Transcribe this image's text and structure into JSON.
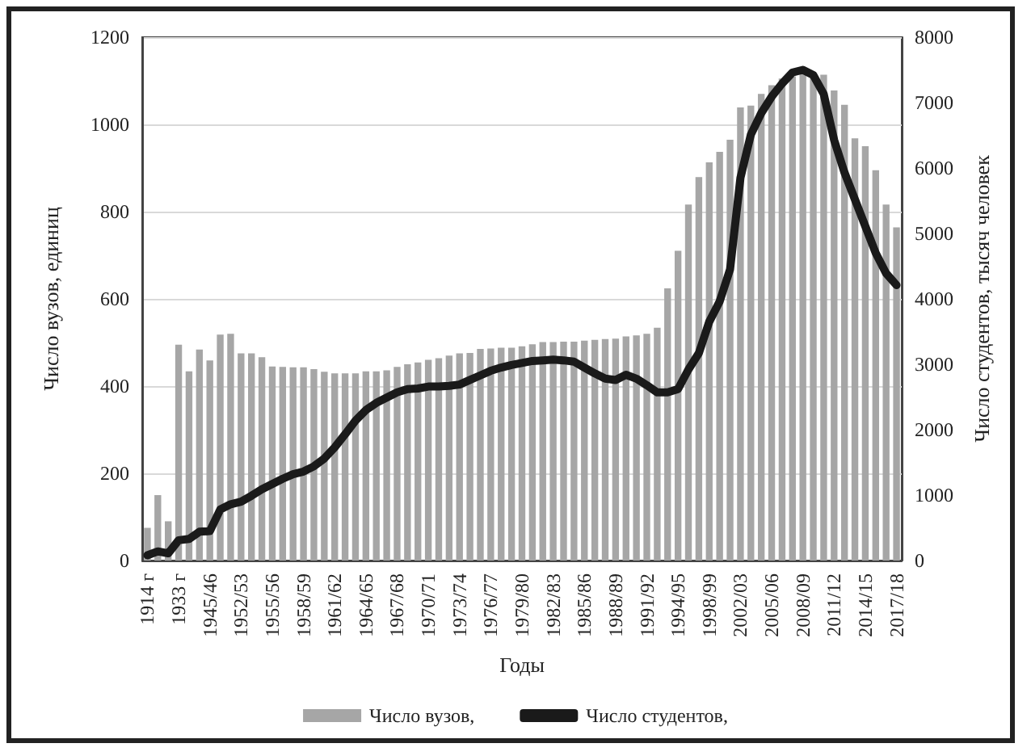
{
  "chart_data": {
    "type": "bar",
    "xlabel": "Годы",
    "ylabel": "Число вузов, единиц",
    "y2label": "Число студентов, тысяч человек",
    "categories": [
      "1914 г",
      null,
      null,
      "1933 г",
      null,
      null,
      "1945/46",
      null,
      null,
      "1952/53",
      null,
      null,
      "1955/56",
      null,
      null,
      "1958/59",
      null,
      null,
      "1961/62",
      null,
      null,
      "1964/65",
      null,
      null,
      "1967/68",
      null,
      null,
      "1970/71",
      null,
      null,
      "1973/74",
      null,
      null,
      "1976/77",
      null,
      null,
      "1979/80",
      null,
      null,
      "1982/83",
      null,
      null,
      "1985/86",
      null,
      null,
      "1988/89",
      null,
      null,
      "1991/92",
      null,
      null,
      "1994/95",
      null,
      null,
      "1998/99",
      null,
      null,
      "2002/03",
      null,
      null,
      "2005/06",
      null,
      null,
      "2008/09",
      null,
      null,
      "2011/12",
      null,
      null,
      "2014/15",
      null,
      null,
      "2017/18"
    ],
    "series": [
      {
        "name": "Число вузов,",
        "color": "#a6a6a6",
        "values": [
          75,
          150,
          90,
          495,
          434,
          484,
          459,
          518,
          520,
          475,
          475,
          466,
          445,
          444,
          443,
          443,
          439,
          433,
          429,
          429,
          429,
          434,
          434,
          436,
          444,
          450,
          454,
          460,
          464,
          470,
          475,
          476,
          485,
          486,
          488,
          488,
          491,
          496,
          501,
          501,
          502,
          502,
          504,
          506,
          508,
          509,
          514,
          516,
          520,
          534,
          624,
          710,
          816,
          879,
          913,
          937,
          965,
          1039,
          1043,
          1070,
          1090,
          1105,
          1110,
          1115,
          1115,
          1114,
          1078,
          1045,
          968,
          950,
          895,
          816,
          764
        ]
      },
      {
        "name": "Число студентов,",
        "type": "line",
        "axis": "y2",
        "color": "#1a1a1a",
        "values": [
          80,
          140,
          110,
          310,
          330,
          440,
          450,
          780,
          860,
          900,
          990,
          1090,
          1170,
          1250,
          1320,
          1360,
          1440,
          1560,
          1730,
          1930,
          2140,
          2300,
          2410,
          2490,
          2570,
          2620,
          2630,
          2660,
          2660,
          2670,
          2690,
          2760,
          2830,
          2900,
          2950,
          2990,
          3020,
          3050,
          3060,
          3070,
          3060,
          3040,
          2950,
          2860,
          2780,
          2760,
          2840,
          2780,
          2680,
          2570,
          2570,
          2620,
          2920,
          3170,
          3650,
          3960,
          4450,
          5850,
          6510,
          6840,
          7090,
          7290,
          7460,
          7500,
          7420,
          7130,
          6430,
          5930,
          5520,
          5110,
          4700,
          4390,
          4210
        ]
      }
    ],
    "ylim": [
      0,
      1200
    ],
    "yticks": [
      0,
      200,
      400,
      600,
      800,
      1000,
      1200
    ],
    "y2lim": [
      0,
      8000
    ],
    "y2ticks": [
      0,
      1000,
      2000,
      3000,
      4000,
      5000,
      6000,
      7000,
      8000
    ],
    "grid": "y",
    "legend": "bottom",
    "marker": "none",
    "line_style": "solid"
  }
}
